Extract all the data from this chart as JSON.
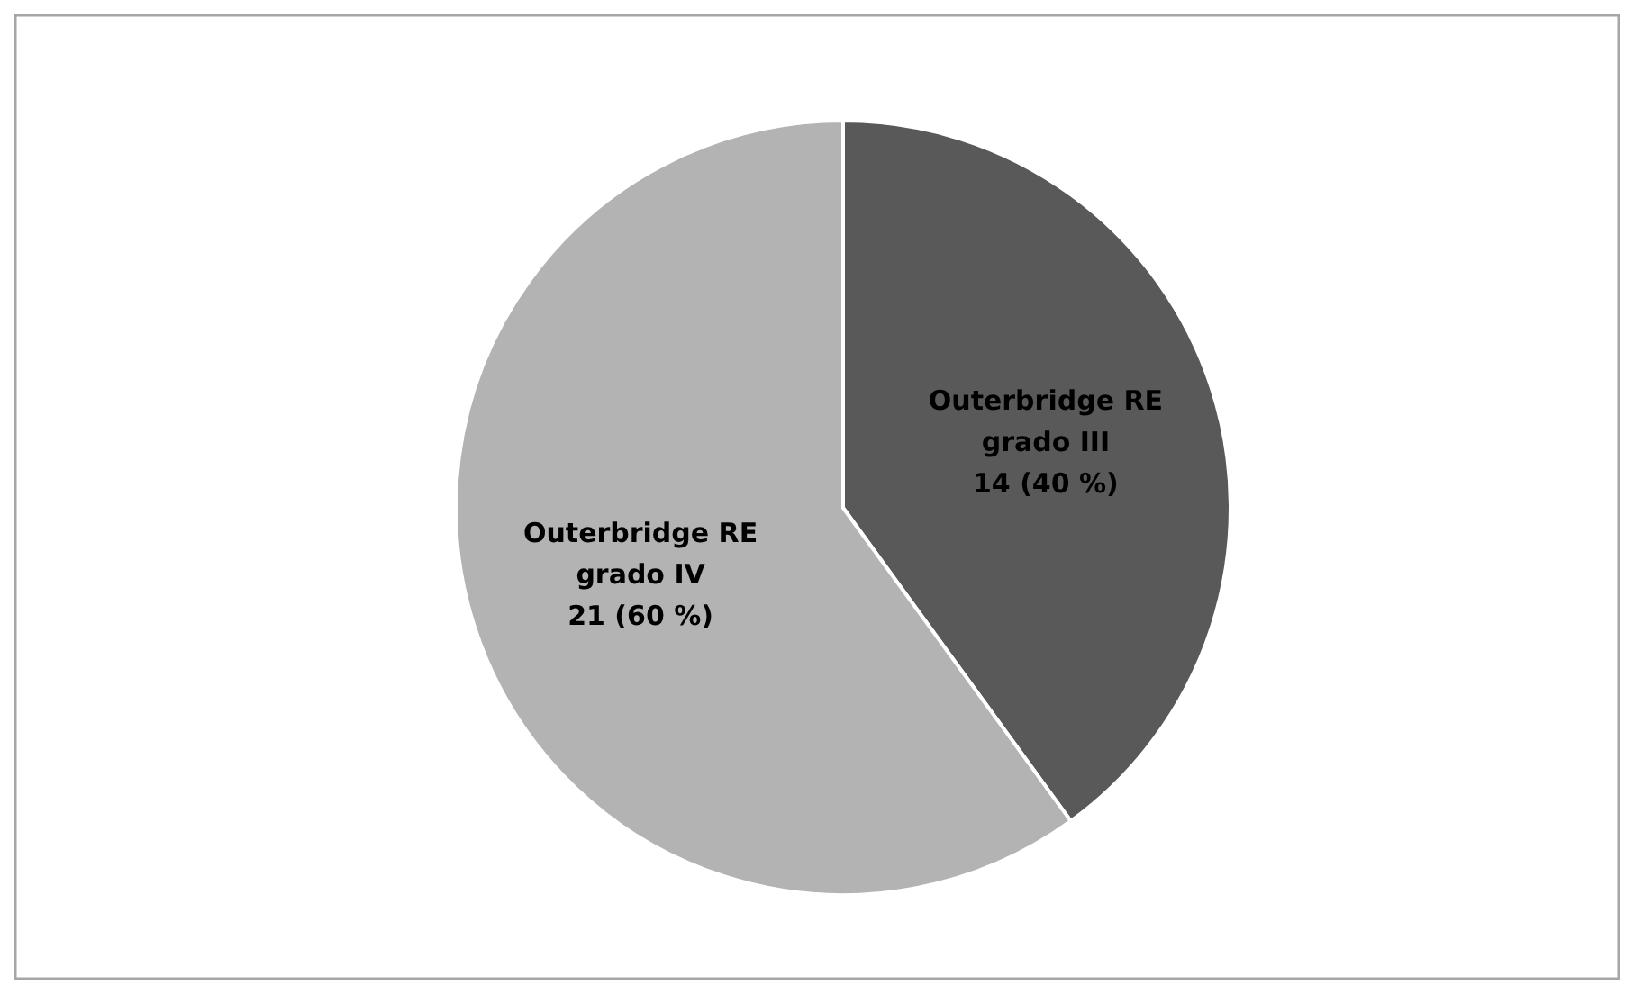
{
  "chart_data": {
    "type": "pie",
    "categories": [
      "Outerbridge RE grado III",
      "Outerbridge RE grado IV"
    ],
    "values": [
      14,
      21
    ],
    "colors": [
      "#595959",
      "#b3b3b3"
    ],
    "value_labels": [
      "14 (40 %)",
      "21 (60 %)"
    ]
  }
}
